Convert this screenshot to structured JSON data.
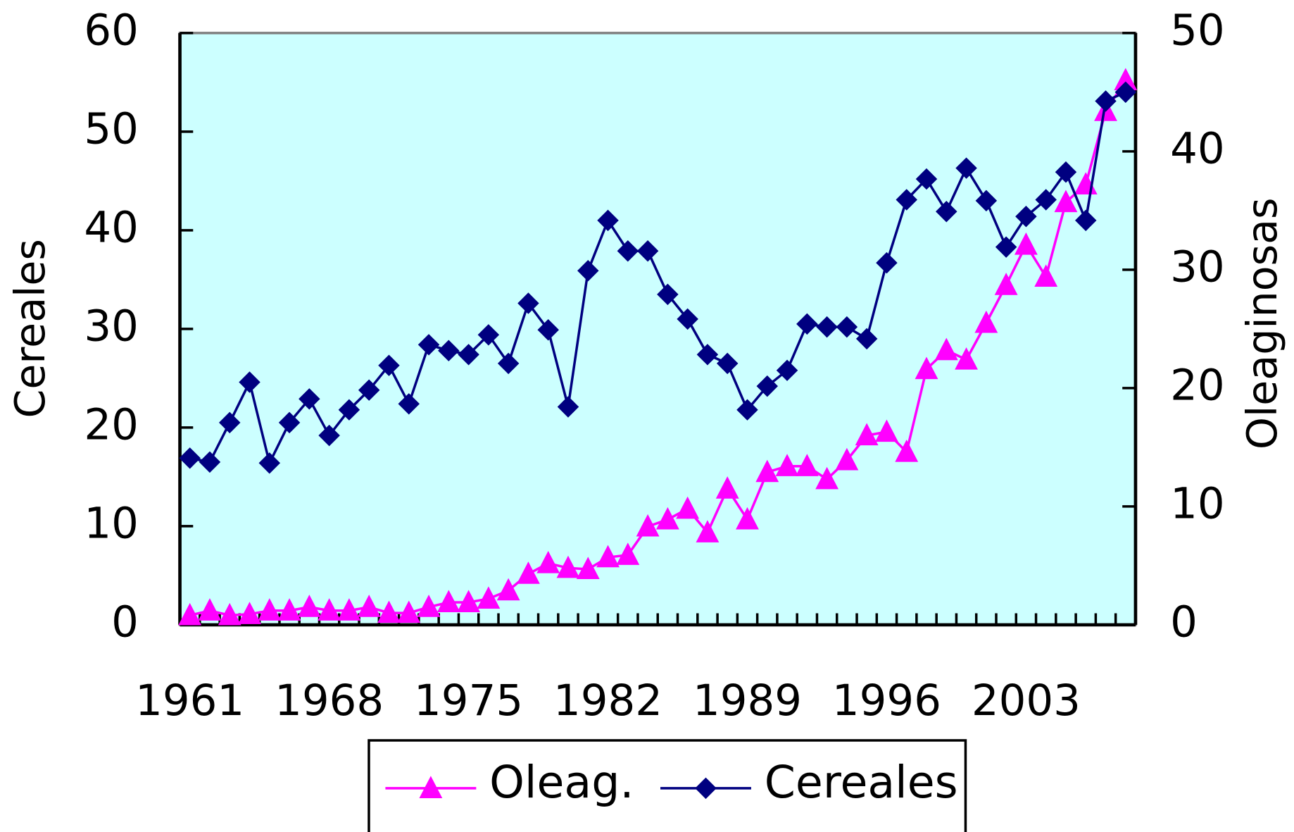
{
  "chart_data": {
    "type": "line",
    "y_label": "Cereales",
    "y2_label": "Oleaginosas",
    "categories": [
      "1961",
      null,
      null,
      null,
      null,
      null,
      null,
      "1968",
      null,
      null,
      null,
      null,
      null,
      null,
      "1975",
      null,
      null,
      null,
      null,
      null,
      null,
      "1982",
      null,
      null,
      null,
      null,
      null,
      null,
      "1989",
      null,
      null,
      null,
      null,
      null,
      null,
      "1996",
      null,
      null,
      null,
      null,
      null,
      null,
      "2003",
      null,
      null,
      null,
      null,
      null
    ],
    "series": [
      {
        "name": "Oleag.",
        "color": "#ff00ff",
        "marker": "triangle",
        "axis": "y2",
        "values": [
          0.8,
          1.2,
          0.8,
          0.9,
          1.2,
          1.2,
          1.5,
          1.2,
          1.2,
          1.5,
          1.0,
          1.0,
          1.5,
          1.9,
          1.9,
          2.2,
          2.9,
          4.3,
          5.2,
          4.8,
          4.7,
          5.7,
          5.9,
          8.3,
          8.9,
          9.8,
          7.8,
          11.5,
          8.9,
          12.9,
          13.4,
          13.4,
          12.3,
          13.9,
          16.0,
          16.3,
          14.6,
          21.6,
          23.2,
          22.4,
          25.5,
          28.7,
          32.1,
          29.4,
          35.7,
          37.2,
          43.4,
          46.0
        ]
      },
      {
        "name": "Cereales",
        "color": "#000080",
        "marker": "diamond",
        "values": [
          16.9,
          16.5,
          20.5,
          24.6,
          16.4,
          20.5,
          22.9,
          19.2,
          21.8,
          23.8,
          26.3,
          22.4,
          28.4,
          27.8,
          27.4,
          29.4,
          26.5,
          32.6,
          29.9,
          22.1,
          35.9,
          41.0,
          37.9,
          37.9,
          33.5,
          31.0,
          27.4,
          26.5,
          21.8,
          24.2,
          25.8,
          30.5,
          30.2,
          30.2,
          29.0,
          36.7,
          43.1,
          45.2,
          41.9,
          46.3,
          43.0,
          38.3,
          41.4,
          43.1,
          45.9,
          41.0,
          53.1,
          54.0
        ]
      }
    ],
    "ylim": [
      0,
      60
    ],
    "yticks": [
      0,
      10,
      20,
      30,
      40,
      50,
      60
    ],
    "y2lim": [
      0,
      50
    ],
    "y2ticks": [
      0,
      10,
      20,
      30,
      40,
      50
    ],
    "background": "#ccffff",
    "legend": "bottom"
  }
}
